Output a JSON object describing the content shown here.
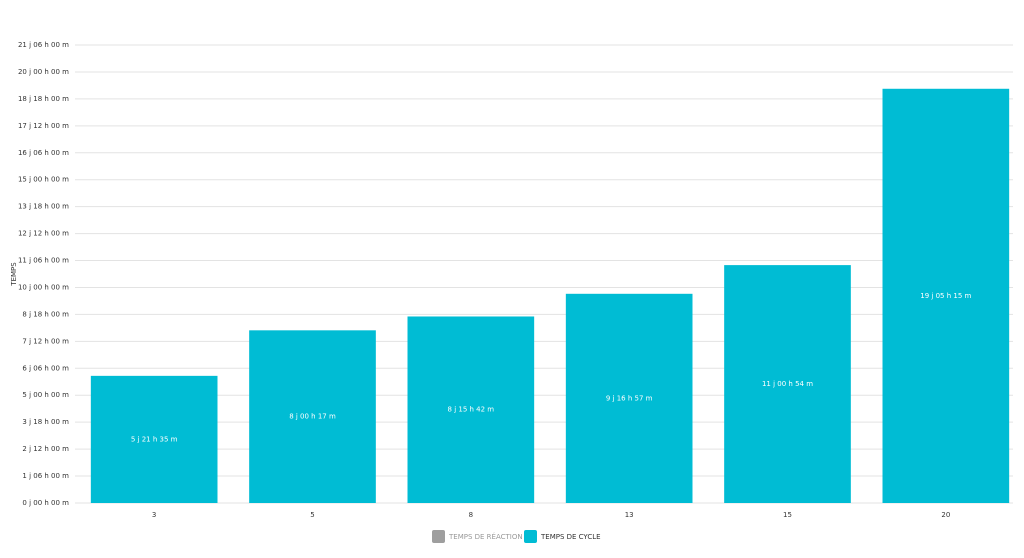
{
  "chart_data": {
    "type": "bar",
    "y_label": "TEMPS",
    "categories": [
      "3",
      "5",
      "8",
      "13",
      "15",
      "20"
    ],
    "series": [
      {
        "name": "TEMPS DE RÉACTION",
        "color": "#9e9e9e",
        "hidden": true,
        "values": [
          null,
          null,
          null,
          null,
          null,
          null
        ]
      },
      {
        "name": "TEMPS DE CYCLE",
        "color": "#00bcd4",
        "values": [
          5.8993,
          8.0118,
          8.6542,
          9.7063,
          11.0375,
          19.2188
        ],
        "value_labels": [
          "5 j 21 h 35 m",
          "8 j 00 h 17 m",
          "8 j 15 h 42 m",
          "9 j 16 h 57 m",
          "11 j 00 h 54 m",
          "19 j 05 h 15 m"
        ]
      }
    ],
    "ylim": [
      0,
      21.25
    ],
    "yticks": [
      {
        "value": 0,
        "label": "0 j 00 h 00 m"
      },
      {
        "value": 1.25,
        "label": "1 j 06 h 00 m"
      },
      {
        "value": 2.5,
        "label": "2 j 12 h 00 m"
      },
      {
        "value": 3.75,
        "label": "3 j 18 h 00 m"
      },
      {
        "value": 5,
        "label": "5 j 00 h 00 m"
      },
      {
        "value": 6.25,
        "label": "6 j 06 h 00 m"
      },
      {
        "value": 7.5,
        "label": "7 j 12 h 00 m"
      },
      {
        "value": 8.75,
        "label": "8 j 18 h 00 m"
      },
      {
        "value": 10,
        "label": "10 j 00 h 00 m"
      },
      {
        "value": 11.25,
        "label": "11 j 06 h 00 m"
      },
      {
        "value": 12.5,
        "label": "12 j 12 h 00 m"
      },
      {
        "value": 13.75,
        "label": "13 j 18 h 00 m"
      },
      {
        "value": 15,
        "label": "15 j 00 h 00 m"
      },
      {
        "value": 16.25,
        "label": "16 j 06 h 00 m"
      },
      {
        "value": 17.5,
        "label": "17 j 12 h 00 m"
      },
      {
        "value": 18.75,
        "label": "18 j 18 h 00 m"
      },
      {
        "value": 20,
        "label": "20 j 00 h 00 m"
      },
      {
        "value": 21.25,
        "label": "21 j 06 h 00 m"
      }
    ],
    "grid": true
  }
}
